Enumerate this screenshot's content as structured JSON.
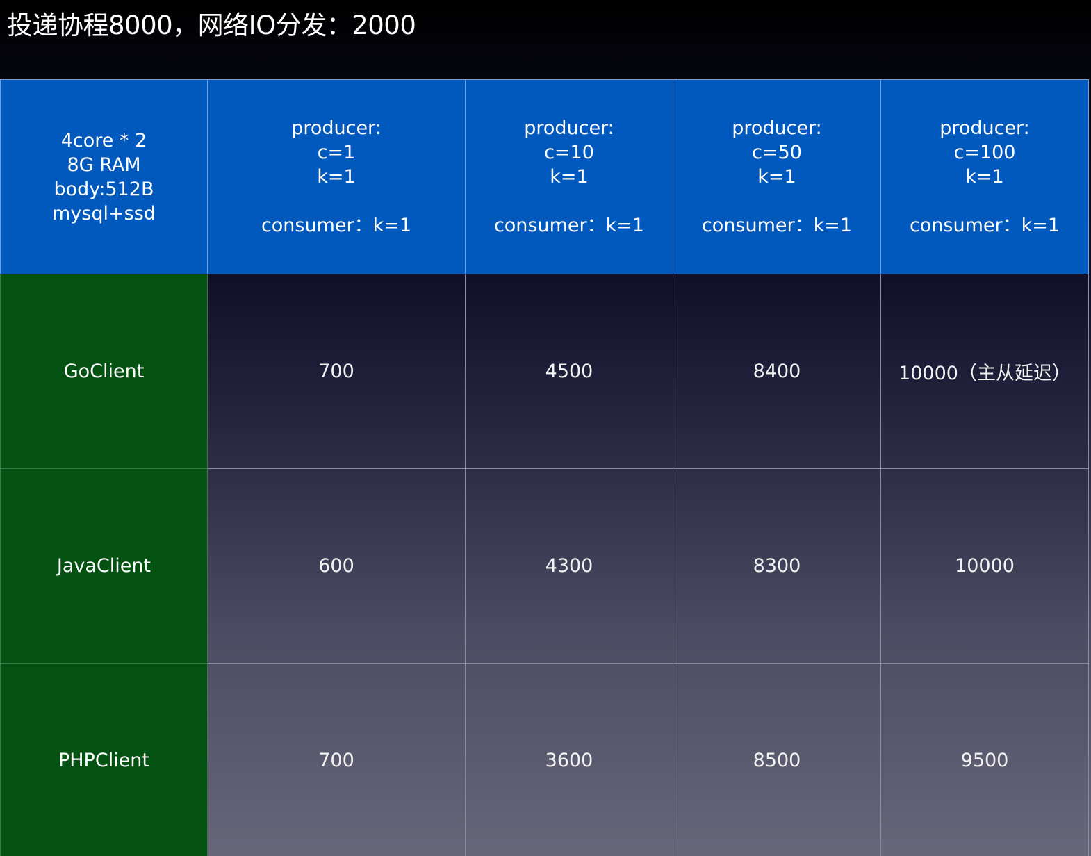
{
  "title": "投递协程8000，网络IO分发：2000",
  "table": {
    "corner": [
      "4core * 2",
      "8G RAM",
      "body:512B",
      "mysql+ssd"
    ],
    "columns": [
      {
        "producer_label": "producer:",
        "c": "c=1",
        "k": "k=1",
        "consumer": "consumer：k=1"
      },
      {
        "producer_label": "producer:",
        "c": "c=10",
        "k": "k=1",
        "consumer": "consumer：k=1"
      },
      {
        "producer_label": "producer:",
        "c": "c=50",
        "k": "k=1",
        "consumer": "consumer：k=1"
      },
      {
        "producer_label": "producer:",
        "c": "c=100",
        "k": "k=1",
        "consumer": "consumer：k=1"
      }
    ],
    "rows": [
      {
        "client": "GoClient",
        "values": [
          "700",
          "4500",
          "8400",
          "10000（主从延迟）"
        ]
      },
      {
        "client": "JavaClient",
        "values": [
          "600",
          "4300",
          "8300",
          "10000"
        ]
      },
      {
        "client": "PHPClient",
        "values": [
          "700",
          "3600",
          "8500",
          "9500"
        ]
      }
    ]
  },
  "colors": {
    "header_bg": "#0159bd",
    "row_header_bg": "#045212",
    "title_text": "#ffffff"
  }
}
